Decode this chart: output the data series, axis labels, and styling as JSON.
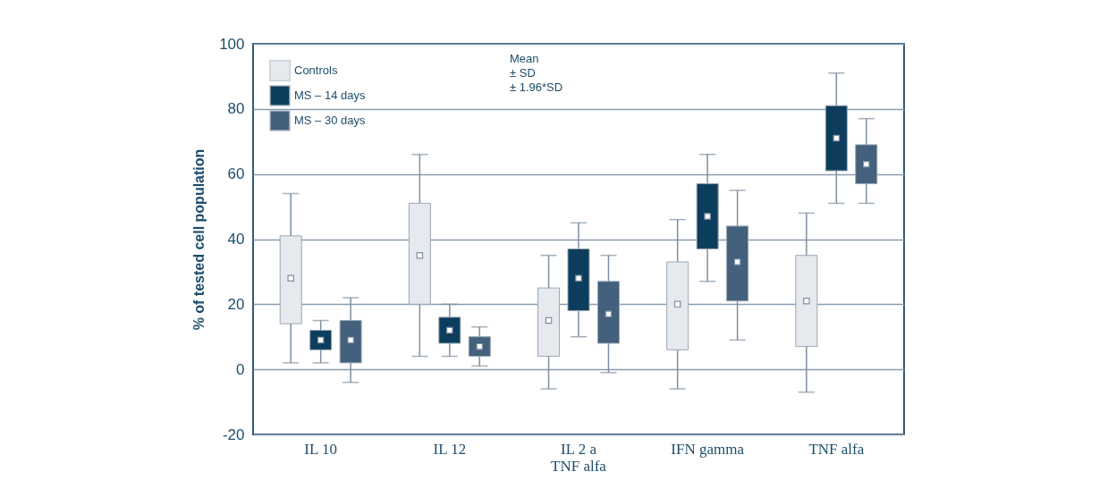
{
  "chart_data": {
    "type": "box",
    "ylabel": "% of tested cell population",
    "categories": [
      "IL 10",
      "IL 12",
      "IL 2 a\nTNF alfa",
      "IFN gamma",
      "TNF alfa"
    ],
    "ylim": [
      -20,
      100
    ],
    "yticks": [
      -20,
      0,
      20,
      40,
      60,
      80,
      100
    ],
    "grid": "y",
    "legend": "top left",
    "series": [
      {
        "name": "Controls",
        "color": "#e6e9ee",
        "boxes": [
          {
            "low": 2,
            "q1": 14,
            "q3": 41,
            "high": 54,
            "mean": 28
          },
          {
            "low": 4,
            "q1": 20,
            "q3": 51,
            "high": 66,
            "mean": 35
          },
          {
            "low": -6,
            "q1": 4,
            "q3": 25,
            "high": 35,
            "mean": 15
          },
          {
            "low": -6,
            "q1": 6,
            "q3": 33,
            "high": 46,
            "mean": 20
          },
          {
            "low": -7,
            "q1": 7,
            "q3": 35,
            "high": 48,
            "mean": 21
          }
        ]
      },
      {
        "name": "MS – 14 days",
        "color": "#0d3d5c",
        "boxes": [
          {
            "low": 2,
            "q1": 6,
            "q3": 12,
            "high": 15,
            "mean": 9
          },
          {
            "low": 4,
            "q1": 8,
            "q3": 16,
            "high": 20,
            "mean": 12
          },
          {
            "low": 10,
            "q1": 18,
            "q3": 37,
            "high": 45,
            "mean": 28
          },
          {
            "low": 27,
            "q1": 37,
            "q3": 57,
            "high": 66,
            "mean": 47
          },
          {
            "low": 51,
            "q1": 61,
            "q3": 81,
            "high": 91,
            "mean": 71
          }
        ]
      },
      {
        "name": "MS – 30 days",
        "color": "#43607c",
        "boxes": [
          {
            "low": -4,
            "q1": 2,
            "q3": 15,
            "high": 22,
            "mean": 9
          },
          {
            "low": 1,
            "q1": 4,
            "q3": 10,
            "high": 13,
            "mean": 7
          },
          {
            "low": -1,
            "q1": 8,
            "q3": 27,
            "high": 35,
            "mean": 17
          },
          {
            "low": 9,
            "q1": 21,
            "q3": 44,
            "high": 55,
            "mean": 33
          },
          {
            "low": 51,
            "q1": 57,
            "q3": 69,
            "high": 77,
            "mean": 63
          }
        ]
      }
    ],
    "annotations": [
      "Mean",
      "± SD",
      "± 1.96*SD"
    ]
  }
}
